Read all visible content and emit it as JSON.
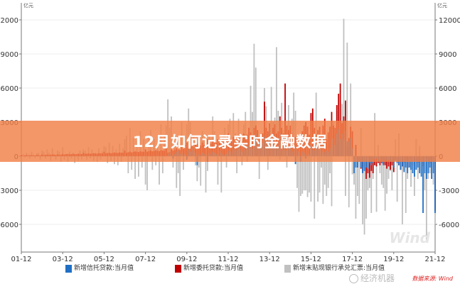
{
  "chart_data": {
    "type": "bar",
    "title": "",
    "unit_left": "亿元",
    "unit_right": "亿元",
    "x_start": "01-12",
    "frequency": "monthly",
    "x_tick_labels": [
      "01-12",
      "03-12",
      "05-12",
      "07-12",
      "09-12",
      "11-12",
      "13-12",
      "15-12",
      "17-12",
      "19-12",
      "21-12"
    ],
    "y_ticks": [
      12000,
      9000,
      6000,
      3000,
      0,
      -3000,
      -6000
    ],
    "ylim": [
      -8500,
      13000
    ],
    "grid": true,
    "legend_position": "bottom",
    "overlay": true,
    "series": [
      {
        "name": "新增末贴现银行承兑汇票:当月值",
        "color": "#c0c0c0",
        "values": [
          300,
          200,
          -100,
          300,
          150,
          -200,
          400,
          100,
          -150,
          250,
          300,
          -300,
          500,
          400,
          -200,
          600,
          300,
          -400,
          700,
          200,
          -300,
          500,
          400,
          -500,
          800,
          -300,
          200,
          -500,
          400,
          -200,
          300,
          -600,
          200,
          -400,
          500,
          -300,
          600,
          500,
          -300,
          800,
          -200,
          600,
          -400,
          300,
          -500,
          700,
          -300,
          400,
          900,
          800,
          -600,
          1200,
          -400,
          900,
          -700,
          600,
          -800,
          1100,
          -500,
          700,
          1500,
          1800,
          -1500,
          2500,
          -1200,
          1600,
          -2000,
          1400,
          -1800,
          2200,
          -1000,
          1500,
          -2500,
          -3000,
          1800,
          2300,
          -1200,
          1500,
          -800,
          1200,
          -2500,
          2800,
          -1500,
          1900,
          2700,
          5000,
          2500,
          3500,
          -1000,
          1200,
          -2800,
          -1500,
          -3500,
          3000,
          -1200,
          1000,
          2800,
          4200,
          3000,
          1500,
          1800,
          -800,
          -2200,
          -1000,
          -2600,
          2200,
          1500,
          -3200,
          -1300,
          1800,
          1500,
          3500,
          2200,
          800,
          -2500,
          1000,
          -3200,
          1900,
          2500,
          -1000,
          2800,
          3300,
          1000,
          3800,
          2000,
          -1500,
          3300,
          1400,
          -800,
          2800,
          3900,
          -500,
          2200,
          6200,
          3900,
          9900,
          7800,
          2200,
          -2000,
          1500,
          1600,
          6000,
          4400,
          -1200,
          1500,
          6100,
          3000,
          3400,
          9600,
          4000,
          -300,
          4700,
          2300,
          3200,
          -1000,
          4500,
          1700,
          3300,
          5600,
          4000,
          -2800,
          -4900,
          -3500,
          -3300,
          -3000,
          -3000,
          -3600,
          -3200,
          -4000,
          4100,
          -5500,
          5600,
          -4000,
          -3200,
          -1000,
          -4200,
          -2500,
          -3500,
          -2800,
          -1500,
          -4400,
          3100,
          1900,
          4000,
          1300,
          1700,
          4600,
          12100,
          -3500,
          10000,
          -4500,
          6400,
          -1600,
          -2500,
          -5500,
          -3500,
          -4200,
          2500,
          -6000,
          -6900,
          -5500,
          -3000,
          -2800,
          -5000,
          -2000,
          3800,
          -4900,
          1000,
          -1500,
          -2500,
          -2800,
          -4800,
          -3300,
          -2000,
          -1300,
          -3000,
          -1200,
          1500,
          -4000,
          2000,
          -1000,
          -6000,
          -1200,
          -5000,
          -2000,
          -1000,
          -2700,
          -1500,
          -3500,
          1500,
          -2000,
          900,
          -1500,
          -3000,
          -3000,
          -7500,
          -2000,
          -1500,
          -1000,
          -2500,
          -6000
        ]
      },
      {
        "name": "新增委托贷款:当月值",
        "color": "#c00000",
        "values": [
          100,
          50,
          80,
          100,
          60,
          90,
          100,
          80,
          70,
          110,
          90,
          80,
          150,
          100,
          120,
          150,
          110,
          140,
          150,
          130,
          120,
          160,
          140,
          130,
          200,
          150,
          170,
          200,
          160,
          180,
          210,
          190,
          170,
          220,
          200,
          190,
          300,
          200,
          220,
          250,
          210,
          240,
          260,
          230,
          220,
          270,
          250,
          240,
          400,
          250,
          280,
          300,
          260,
          290,
          320,
          300,
          280,
          330,
          310,
          300,
          500,
          300,
          350,
          400,
          330,
          380,
          420,
          400,
          360,
          430,
          400,
          380,
          600,
          400,
          450,
          500,
          420,
          460,
          520,
          480,
          450,
          530,
          500,
          480,
          700,
          300,
          350,
          600,
          500,
          550,
          700,
          600,
          550,
          800,
          650,
          700,
          1200,
          700,
          800,
          900,
          850,
          1000,
          1100,
          900,
          950,
          1200,
          1000,
          1100,
          1500,
          1200,
          1100,
          1400,
          1300,
          1200,
          1500,
          1400,
          1300,
          1600,
          1400,
          1500,
          2000,
          1500,
          1400,
          1700,
          1600,
          1500,
          1800,
          1700,
          1600,
          2000,
          1800,
          1900,
          2500,
          2100,
          1800,
          2500,
          2700,
          2300,
          1600,
          1800,
          2000,
          4800,
          2500,
          2200,
          2900,
          1500,
          2500,
          2800,
          2000,
          2200,
          3500,
          2500,
          2000,
          6400,
          2700,
          2300,
          2700,
          2000,
          1600,
          1700,
          1200,
          1500,
          1800,
          2200,
          2700,
          3000,
          2600,
          1900,
          3800,
          4200,
          2500,
          1900,
          2300,
          2600,
          1900,
          2700,
          3300,
          1500,
          2100,
          2600,
          3900,
          2700,
          2500,
          4500,
          5500,
          6400,
          2900,
          3500,
          4900,
          800,
          1600,
          2600,
          2200,
          -200,
          1000,
          -500,
          -500,
          -1100,
          -1400,
          -1000,
          -2000,
          -1500,
          -1900,
          -1300,
          -1500,
          -800,
          -900,
          -600,
          -800,
          -600,
          -700,
          -800,
          -1100,
          -900,
          -1200,
          -800,
          -1400,
          -300,
          -500,
          -800,
          -1200,
          -900,
          -600,
          -300,
          -400,
          -1000,
          -200,
          -800,
          -400,
          -400,
          -600,
          -500,
          -300,
          -900,
          -500,
          -200,
          -400,
          -600,
          -300,
          -500,
          -4800
        ]
      },
      {
        "name": "新增信托贷款:当月值",
        "color": "#1f6fc5",
        "values": [
          0,
          0,
          0,
          0,
          0,
          0,
          0,
          0,
          0,
          0,
          0,
          0,
          0,
          0,
          0,
          0,
          0,
          0,
          0,
          0,
          0,
          0,
          0,
          0,
          0,
          0,
          0,
          0,
          0,
          0,
          0,
          0,
          0,
          0,
          0,
          0,
          0,
          0,
          0,
          0,
          0,
          0,
          0,
          0,
          0,
          0,
          0,
          0,
          0,
          0,
          0,
          0,
          0,
          0,
          0,
          0,
          0,
          0,
          0,
          0,
          0,
          0,
          0,
          0,
          0,
          0,
          0,
          0,
          0,
          0,
          0,
          0,
          0,
          0,
          0,
          0,
          0,
          0,
          0,
          0,
          0,
          0,
          0,
          0,
          0,
          200,
          100,
          300,
          -200,
          200,
          400,
          500,
          200,
          300,
          100,
          200,
          -300,
          600,
          400,
          700,
          400,
          300,
          -800,
          200,
          100,
          300,
          200,
          100,
          -500,
          300,
          200,
          400,
          300,
          200,
          100,
          500,
          300,
          200,
          100,
          200,
          500,
          400,
          300,
          600,
          700,
          500,
          800,
          600,
          400,
          1200,
          500,
          700,
          1000,
          1000,
          700,
          1700,
          2000,
          1300,
          1000,
          1000,
          1200,
          1800,
          1200,
          1500,
          2500,
          1800,
          700,
          900,
          700,
          1000,
          2000,
          700,
          500,
          1500,
          500,
          900,
          1500,
          400,
          600,
          -700,
          600,
          400,
          -500,
          400,
          300,
          -200,
          100,
          200,
          1000,
          600,
          500,
          900,
          700,
          600,
          1000,
          400,
          300,
          500,
          400,
          700,
          1500,
          1600,
          1000,
          2000,
          2400,
          1500,
          2000,
          1500,
          2200,
          1300,
          1300,
          1600,
          700,
          -1500,
          -1000,
          -1000,
          -500,
          -1000,
          -1500,
          -1300,
          -1000,
          -1100,
          -600,
          -800,
          -600,
          -300,
          -200,
          -500,
          -300,
          -600,
          -800,
          -300,
          -400,
          -300,
          -500,
          -400,
          -1000,
          -400,
          -600,
          -800,
          -1200,
          -900,
          -1400,
          -1000,
          -1500,
          -1000,
          -1200,
          -1500,
          -1800,
          -1200,
          -1000,
          -1500,
          -1800,
          -5000,
          -1500,
          -2000,
          -1500,
          -1000,
          -2000,
          -1500,
          -5000
        ]
      }
    ]
  },
  "legend": [
    {
      "label": "新增信托贷款:当月值",
      "color": "#1f6fc5"
    },
    {
      "label": "新增委托贷款:当月值",
      "color": "#c00000"
    },
    {
      "label": "新增末贴现银行承兑汇票:当月值",
      "color": "#c0c0c0"
    }
  ],
  "banner": {
    "title": "12月如何记录实时金融数据"
  },
  "watermark": {
    "brand": "经济机器",
    "wind": "Wind",
    "source": "数据来源: Wind"
  }
}
